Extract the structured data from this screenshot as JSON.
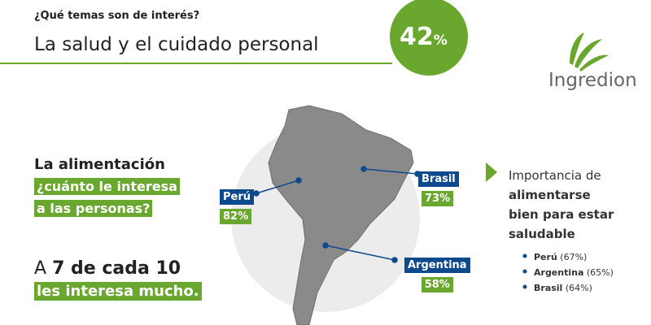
{
  "header": {
    "question": "¿Qué temas son de interés?",
    "title": "La salud y el cuidado personal",
    "badge": {
      "value": "42",
      "unit": "%"
    }
  },
  "logo": {
    "text": "Ingredion"
  },
  "left": {
    "heading": "La alimentación",
    "highlight": [
      "¿cuánto le interesa",
      "a las personas?"
    ],
    "stat": {
      "prefix": "A",
      "bold": "7 de cada 10",
      "highlight": "les interesa mucho."
    }
  },
  "map": {
    "labels": [
      {
        "country": "Perú",
        "value": "82%"
      },
      {
        "country": "Brasil",
        "value": "73%"
      },
      {
        "country": "Argentina",
        "value": "58%"
      }
    ]
  },
  "right": {
    "intro": "Importancia de",
    "bold": [
      "alimentarse",
      "bien para estar",
      "saludable"
    ],
    "list": [
      {
        "country": "Perú",
        "value": "(67%)"
      },
      {
        "country": "Argentina",
        "value": "(65%)"
      },
      {
        "country": "Brasil",
        "value": "(64%)"
      }
    ]
  }
}
